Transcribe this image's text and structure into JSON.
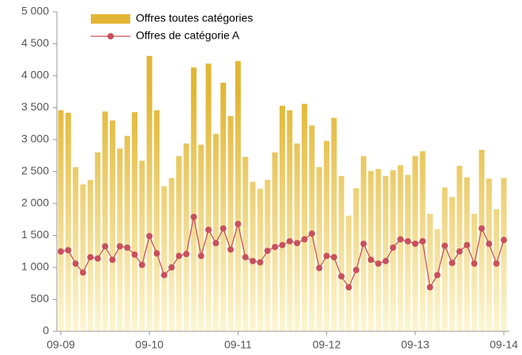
{
  "chart_data": {
    "type": "bar_line",
    "categories": [
      "09-09",
      null,
      null,
      null,
      null,
      null,
      null,
      null,
      null,
      null,
      null,
      null,
      "09-10",
      null,
      null,
      null,
      null,
      null,
      null,
      null,
      null,
      null,
      null,
      null,
      "09-11",
      null,
      null,
      null,
      null,
      null,
      null,
      null,
      null,
      null,
      null,
      null,
      "09-12",
      null,
      null,
      null,
      null,
      null,
      null,
      null,
      null,
      null,
      null,
      null,
      "09-13",
      null,
      null,
      null,
      null,
      null,
      null,
      null,
      null,
      null,
      null,
      null,
      "09-14"
    ],
    "series": [
      {
        "name": "Offres toutes catégories",
        "type": "bar",
        "color": "#e2b634",
        "values": [
          3460,
          3420,
          2570,
          2300,
          2370,
          2800,
          3440,
          3300,
          2860,
          3060,
          3430,
          2670,
          4310,
          3460,
          2270,
          2400,
          2740,
          2940,
          4130,
          2920,
          4190,
          3090,
          3890,
          3370,
          4230,
          2730,
          2340,
          2230,
          2370,
          2800,
          3530,
          3460,
          2940,
          3560,
          3220,
          2570,
          2980,
          3340,
          2430,
          1810,
          2240,
          2740,
          2510,
          2540,
          2430,
          2520,
          2600,
          2450,
          2740,
          2820,
          1840,
          1600,
          2250,
          2100,
          2590,
          2410,
          1840,
          2840,
          2390,
          1910,
          2400
        ]
      },
      {
        "name": "Offres de catégorie A",
        "type": "line",
        "color": "#c9505a",
        "values": [
          1250,
          1270,
          1060,
          920,
          1160,
          1140,
          1330,
          1120,
          1330,
          1310,
          1200,
          1040,
          1490,
          1220,
          880,
          1000,
          1180,
          1210,
          1790,
          1180,
          1590,
          1380,
          1610,
          1280,
          1680,
          1160,
          1100,
          1080,
          1260,
          1320,
          1350,
          1410,
          1380,
          1440,
          1530,
          990,
          1180,
          1160,
          860,
          690,
          960,
          1370,
          1120,
          1060,
          1100,
          1310,
          1440,
          1410,
          1370,
          1410,
          690,
          880,
          1340,
          1070,
          1250,
          1350,
          1060,
          1610,
          1370,
          1060,
          1430
        ]
      }
    ],
    "ylim": [
      0,
      5000
    ],
    "yticks": [
      0,
      500,
      {
        "value": 1000,
        "label": "1 000"
      },
      {
        "value": 1500,
        "label": "1 500"
      },
      {
        "value": 2000,
        "label": "2 000"
      },
      {
        "value": 2500,
        "label": "2 500"
      },
      {
        "value": 3000,
        "label": "3 000"
      },
      {
        "value": 3500,
        "label": "3 500"
      },
      {
        "value": 4000,
        "label": "4 000"
      },
      {
        "value": 4500,
        "label": "4 500"
      },
      {
        "value": 5000,
        "label": "5 000"
      }
    ],
    "grid": false,
    "legend": "top-left"
  }
}
